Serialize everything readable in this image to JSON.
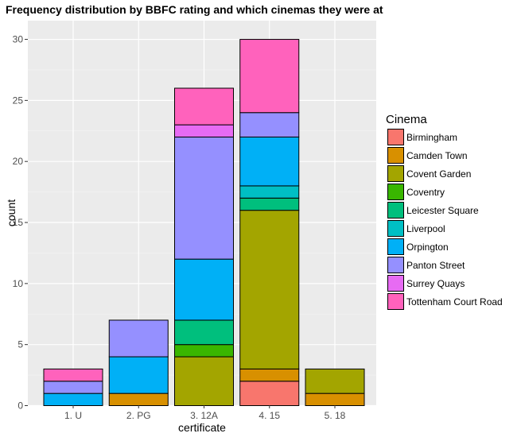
{
  "chart_data": {
    "type": "bar",
    "stacked": true,
    "title": "Frequency distribution by BBFC rating and which cinemas they were at",
    "xlabel": "certificate",
    "ylabel": "count",
    "ylim": [
      0,
      31.5
    ],
    "yticks": [
      0,
      5,
      10,
      15,
      20,
      25,
      30
    ],
    "categories": [
      "1. U",
      "2. PG",
      "3. 12A",
      "4. 15",
      "5. 18"
    ],
    "legend_title": "Cinema",
    "legend_position": "right",
    "series": [
      {
        "name": "Birmingham",
        "color": "#F8766D",
        "values": [
          0,
          0,
          0,
          2,
          0
        ]
      },
      {
        "name": "Camden Town",
        "color": "#D89000",
        "values": [
          0,
          1,
          0,
          1,
          1
        ]
      },
      {
        "name": "Covent Garden",
        "color": "#A3A500",
        "values": [
          0,
          0,
          4,
          13,
          2
        ]
      },
      {
        "name": "Coventry",
        "color": "#39B600",
        "values": [
          0,
          0,
          1,
          0,
          0
        ]
      },
      {
        "name": "Leicester Square",
        "color": "#00BF7D",
        "values": [
          0,
          0,
          2,
          1,
          0
        ]
      },
      {
        "name": "Liverpool",
        "color": "#00BFC4",
        "values": [
          0,
          0,
          0,
          1,
          0
        ]
      },
      {
        "name": "Orpington",
        "color": "#00B0F6",
        "values": [
          1,
          3,
          5,
          4,
          0
        ]
      },
      {
        "name": "Panton Street",
        "color": "#9590FF",
        "values": [
          1,
          3,
          10,
          2,
          0
        ]
      },
      {
        "name": "Surrey Quays",
        "color": "#E76BF3",
        "values": [
          0,
          0,
          1,
          0,
          0
        ]
      },
      {
        "name": "Tottenham Court Road",
        "color": "#FF62BC",
        "values": [
          1,
          0,
          3,
          6,
          0
        ]
      }
    ]
  }
}
